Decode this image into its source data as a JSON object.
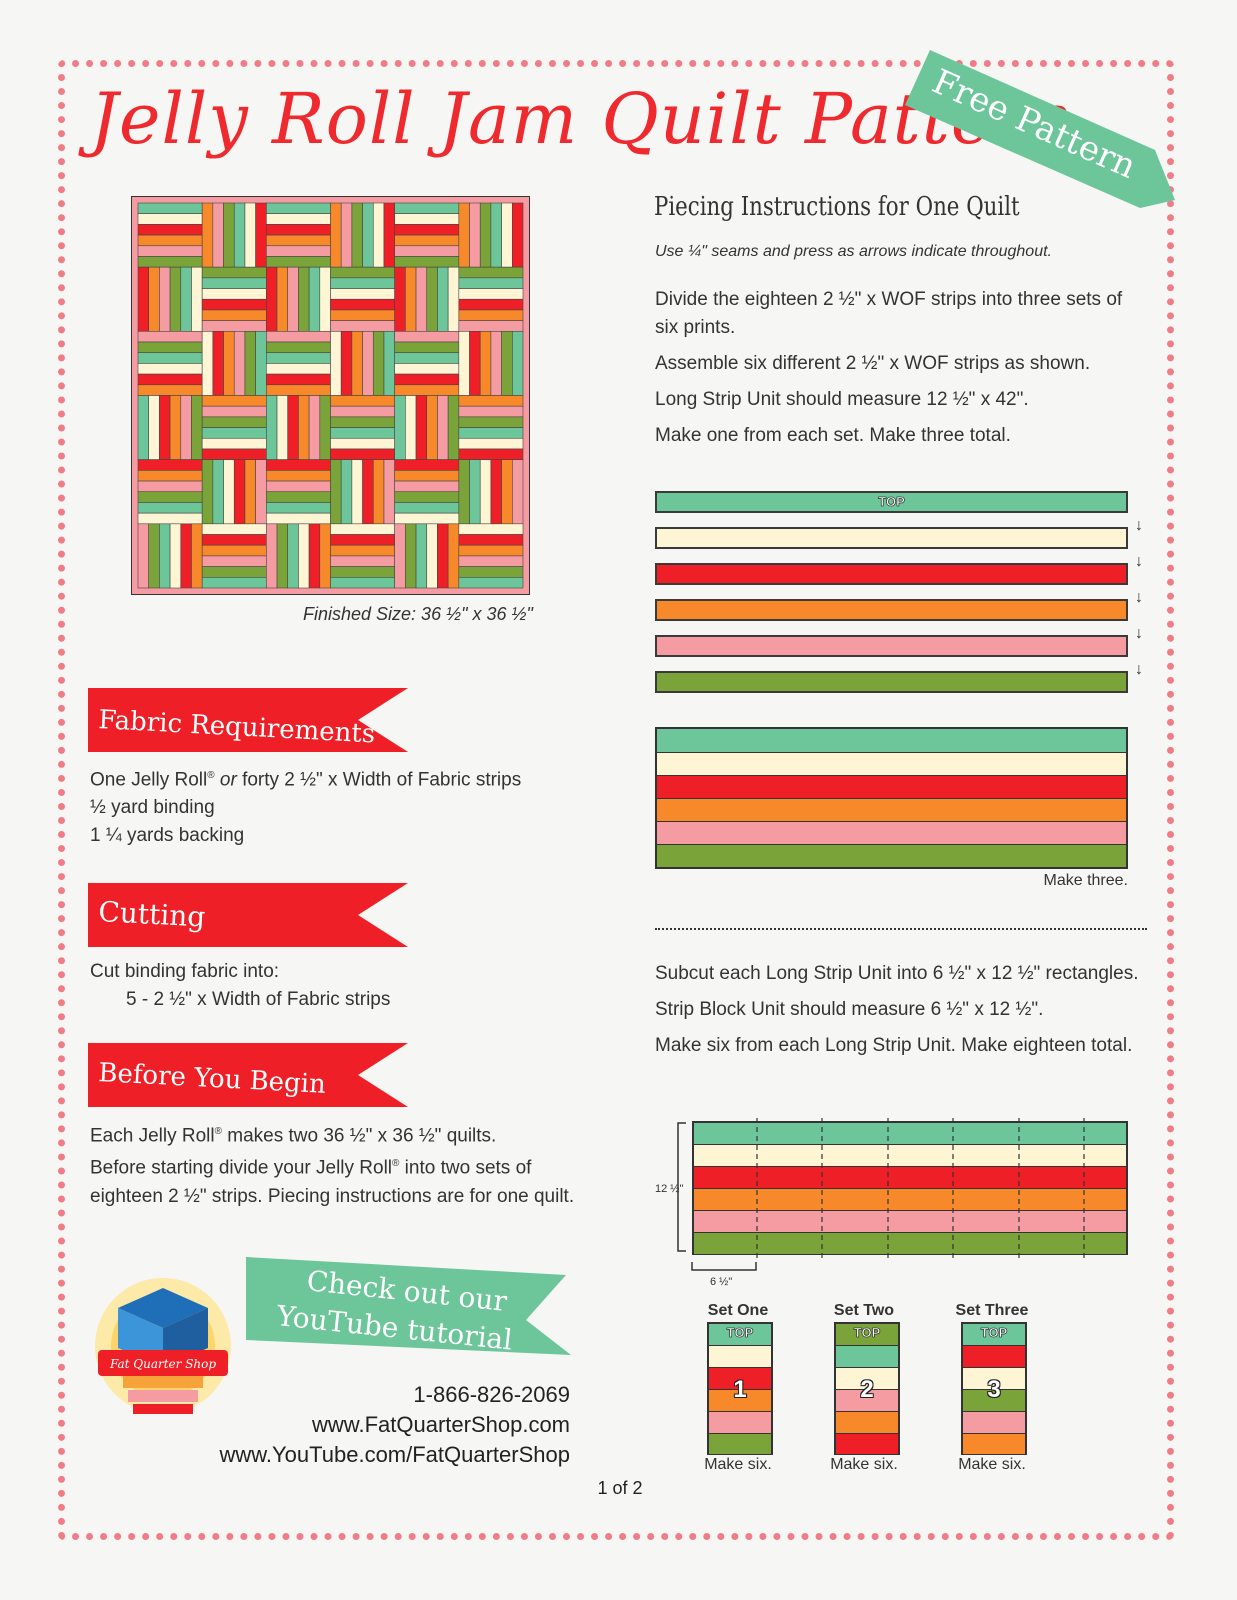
{
  "title": "Jelly Roll Jam Quilt Pattern",
  "corner_banner": "Free Pattern",
  "colors": {
    "mint": "#6cc69a",
    "cream": "#fdf5d3",
    "red": "#ee1f26",
    "orange": "#f7892b",
    "pink": "#f59ca3",
    "green": "#7aa339",
    "title_red": "#ee2a2e",
    "banner_green": "#6cc69a",
    "frame_pink": "#f07d86"
  },
  "finished_size": "Finished Size: 36 ½\" x 36 ½\"",
  "fabric": {
    "heading": "Fabric Requirements",
    "line1_a": "One Jelly Roll",
    "line1_reg": "®",
    "line1_or": "or",
    "line1_b": "forty 2 ½\" x Width of Fabric strips",
    "line2": "½ yard binding",
    "line3": "1 ¼ yards backing"
  },
  "cutting": {
    "heading": "Cutting",
    "line1": "Cut binding fabric into:",
    "line2": "5 - 2 ½\" x Width of Fabric strips"
  },
  "before": {
    "heading": "Before You Begin",
    "p1a": "Each Jelly Roll",
    "p1b": " makes two 36 ½\" x 36 ½\" quilts.",
    "p2a": "Before starting divide your Jelly Roll",
    "p2b": " into two sets of eighteen 2 ½\" strips. Piecing instructions are for one quilt.",
    "reg": "®"
  },
  "youtube_banner": {
    "line1": "Check out our",
    "line2": "YouTube tutorial"
  },
  "logo_text": "Fat Quarter Shop",
  "contact": {
    "phone": "1-866-826-2069",
    "web": "www.FatQuarterShop.com",
    "youtube": "www.YouTube.com/FatQuarterShop"
  },
  "page_number": "1 of 2",
  "piecing": {
    "heading": "Piecing Instructions for One Quilt",
    "subheading": "Use ¼\" seams and press as arrows indicate throughout.",
    "p1": "Divide the eighteen 2 ½\" x WOF strips into three sets of six prints.",
    "p2": "Assemble six different 2 ½\" x WOF strips as shown.",
    "p3": "Long Strip Unit should measure 12 ½\" x 42\".",
    "p4": "Make one from each set. Make three total.",
    "top_label": "TOP",
    "arrow_glyph": "↓",
    "make_three": "Make three.",
    "p5": "Subcut each Long Strip Unit into 6 ½\" x 12 ½\" rectangles.",
    "p6": "Strip Block Unit should measure 6 ½\" x 12 ½\".",
    "p7": "Make six from each Long Strip Unit. Make eighteen total.",
    "dim_height": "12 ½\"",
    "dim_width": "6 ½\""
  },
  "sets": [
    {
      "label": "Set One",
      "top": "TOP",
      "number": "1",
      "make": "Make six."
    },
    {
      "label": "Set Two",
      "top": "TOP",
      "number": "2",
      "make": "Make six."
    },
    {
      "label": "Set Three",
      "top": "TOP",
      "number": "3",
      "make": "Make six."
    }
  ]
}
